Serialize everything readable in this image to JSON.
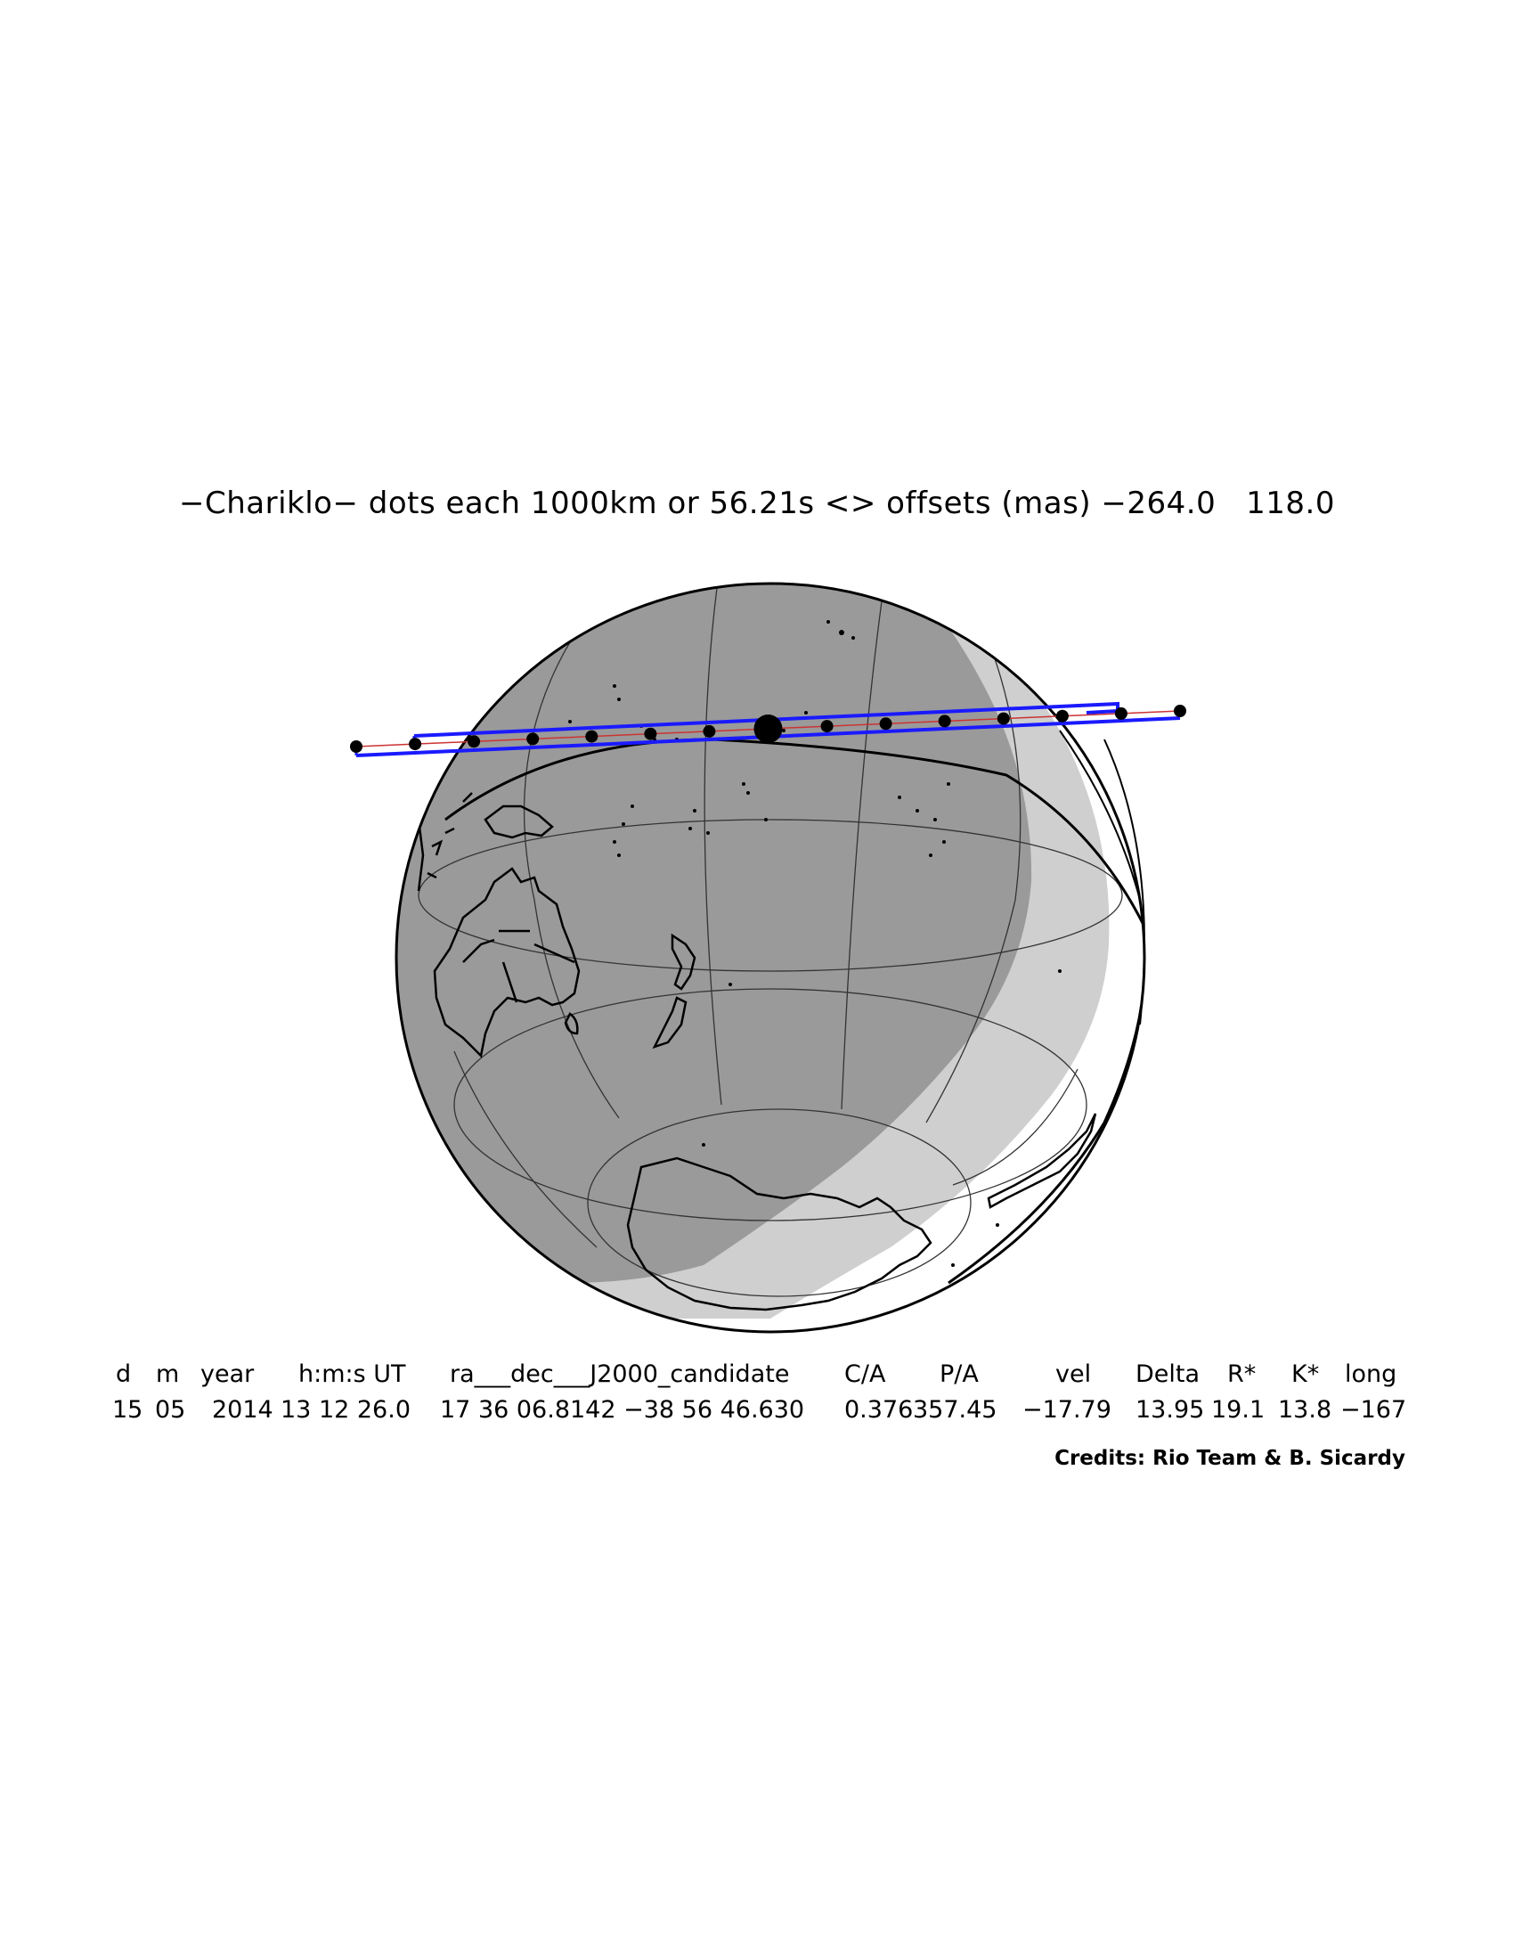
{
  "title": "−Chariklo− dots each 1000km or 56.21s <> offsets (mas) −264.0   118.0",
  "table": {
    "headers": [
      "d",
      "m",
      "year",
      "h:m:s UT",
      "ra___dec___J2000_candidate",
      "C/A",
      "P/A",
      "vel",
      "Delta",
      "R*",
      "K*",
      "long"
    ],
    "values": [
      "15",
      "05",
      "2014",
      "13 12 26.0",
      "17 36 06.8142 −38 56 46.630",
      "0.376",
      "357.45",
      "−17.79",
      "13.95",
      "19.1",
      "13.8",
      "−167"
    ]
  },
  "credits": "Credits: Rio Team & B. Sicardy",
  "colors": {
    "night": "#9a9a9a",
    "twilight": "#cfcfcf",
    "day": "#ffffff",
    "path_limits": "#1a1aff",
    "centerline": "#cc3333",
    "coast": "#000000"
  }
}
